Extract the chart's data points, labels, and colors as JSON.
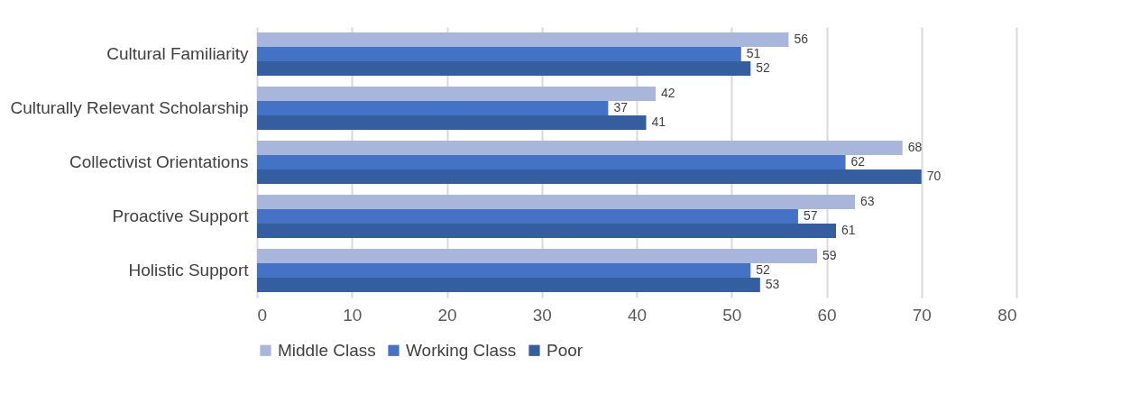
{
  "chart_data": {
    "type": "bar",
    "orientation": "horizontal",
    "categories": [
      "Cultural Familiarity",
      "Culturally Relevant Scholarship",
      "Collectivist Orientations",
      "Proactive Support",
      "Holistic Support"
    ],
    "series": [
      {
        "name": "Middle Class",
        "color": "#a9b6dc",
        "values": [
          56,
          42,
          68,
          63,
          59
        ]
      },
      {
        "name": "Working Class",
        "color": "#4472c4",
        "values": [
          51,
          37,
          62,
          57,
          52
        ]
      },
      {
        "name": "Poor",
        "color": "#345e9f",
        "values": [
          52,
          41,
          70,
          61,
          53
        ]
      }
    ],
    "xlim": [
      0,
      80
    ],
    "xticks": [
      0,
      10,
      20,
      30,
      40,
      50,
      60,
      70,
      80
    ],
    "grid": "x",
    "legend": "bottom",
    "data_labels": true
  }
}
